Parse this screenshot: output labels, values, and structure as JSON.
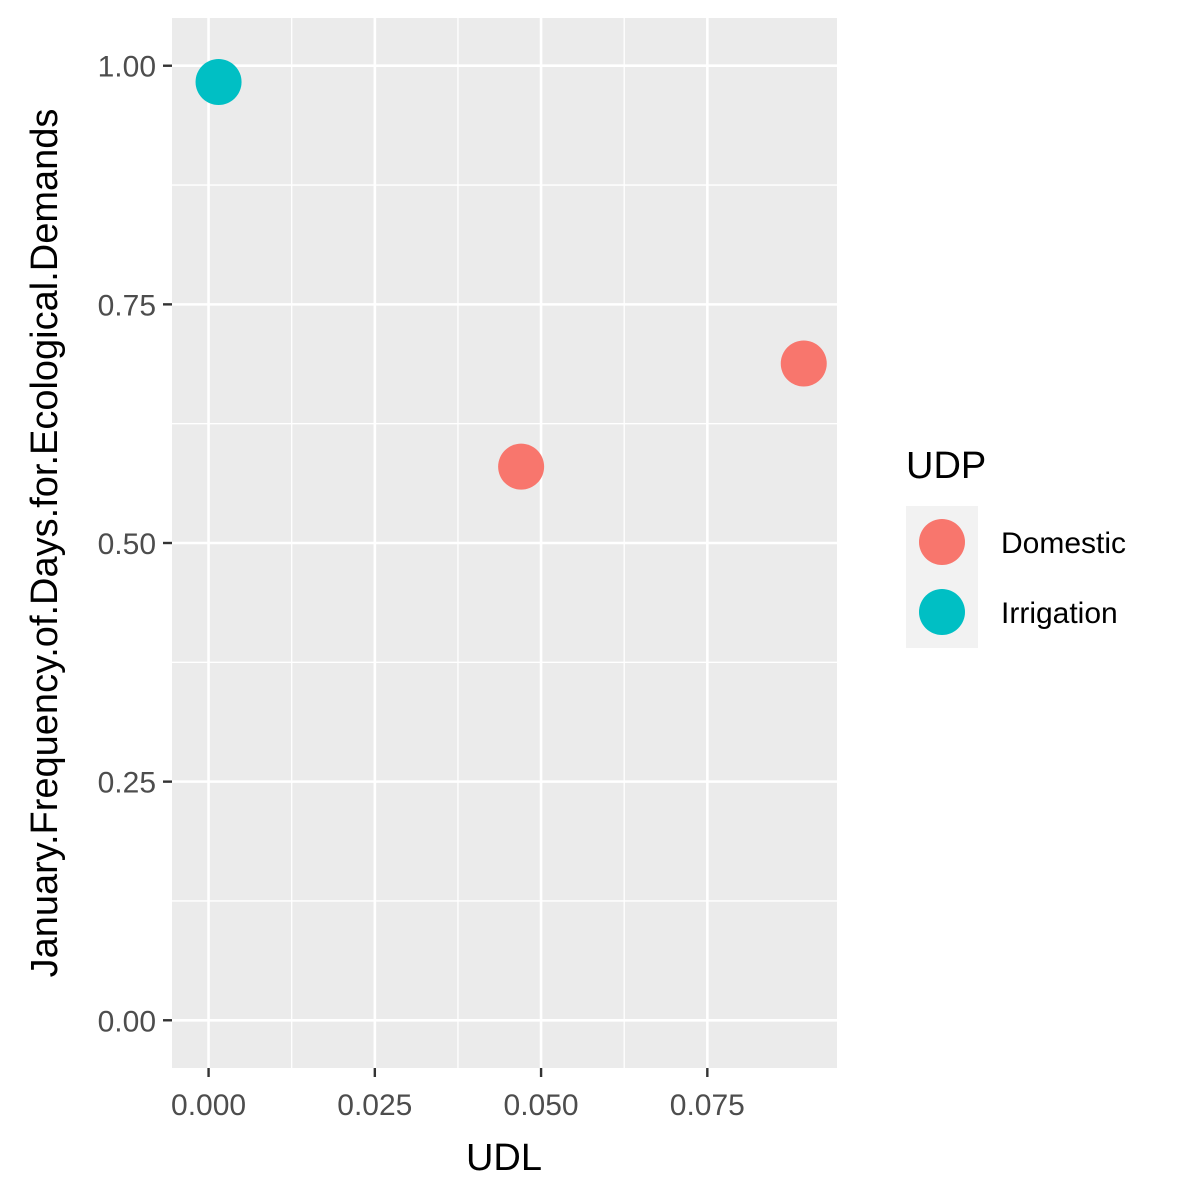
{
  "chart_data": {
    "type": "scatter",
    "title": "",
    "xlabel": "UDL",
    "ylabel": "January.Frequency.of.Days.for.Ecological.Demands",
    "xlim": [
      -0.0055,
      0.0945
    ],
    "ylim": [
      -0.05,
      1.05
    ],
    "x_ticks": [
      0.0,
      0.025,
      0.05,
      0.075
    ],
    "x_tick_labels": [
      "0.000",
      "0.025",
      "0.050",
      "0.075"
    ],
    "y_ticks": [
      0.0,
      0.25,
      0.5,
      0.75,
      1.0
    ],
    "y_tick_labels": [
      "0.00",
      "0.25",
      "0.50",
      "0.75",
      "1.00"
    ],
    "grid": true,
    "legend": {
      "title": "UDP",
      "position": "right"
    },
    "series": [
      {
        "name": "Domestic",
        "color": "#F8766D",
        "points": [
          {
            "x": 0.047,
            "y": 0.58
          },
          {
            "x": 0.0895,
            "y": 0.688
          }
        ]
      },
      {
        "name": "Irrigation",
        "color": "#00BFC4",
        "points": [
          {
            "x": 0.0015,
            "y": 0.983
          }
        ]
      }
    ]
  }
}
